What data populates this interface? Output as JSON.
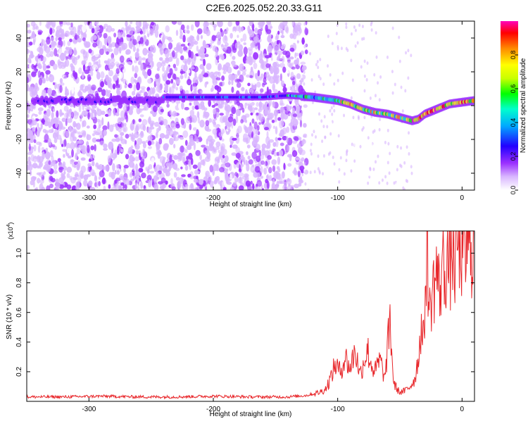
{
  "title": "C2E6.2025.052.20.33.G11",
  "chart_data": [
    {
      "type": "heatmap",
      "xlabel": "Height of straight line (km)",
      "ylabel": "Frequency (Hz)",
      "xlim": [
        -350,
        10
      ],
      "ylim": [
        -50,
        50
      ],
      "x_ticks": [
        -300,
        -200,
        -100,
        0
      ],
      "y_ticks": [
        -40,
        -20,
        0,
        20,
        40
      ],
      "colorbar": {
        "label": "Normalized spectral amplitude",
        "range": [
          0,
          1
        ],
        "ticks": [
          "0.0",
          "0.2",
          "0.4",
          "0.6",
          "0.8"
        ],
        "colors": [
          "#ffffff",
          "#d9b6ff",
          "#9b30ff",
          "#2200ff",
          "#00aaff",
          "#00ffcc",
          "#00ff00",
          "#c8ff00",
          "#ffff00",
          "#ff8800",
          "#ff0000",
          "#ff00bb"
        ]
      },
      "ridge": {
        "x": [
          -240,
          -200,
          -160,
          -140,
          -120,
          -110,
          -100,
          -90,
          -80,
          -70,
          -60,
          -50,
          -40,
          -35,
          -30,
          -20,
          -10,
          0,
          10
        ],
        "y": [
          5,
          5,
          5,
          6,
          5,
          4,
          3,
          1,
          -2,
          -4,
          -5,
          -7,
          -9,
          -8,
          -5,
          -2,
          1,
          2,
          3
        ]
      }
    },
    {
      "type": "line",
      "xlabel": "Height of straight line (km)",
      "ylabel": "SNR (10 * v/v)",
      "yscale_label": "(x10",
      "yscale_exp": "4",
      "xlim": [
        -350,
        10
      ],
      "ylim": [
        0,
        1.15
      ],
      "x_ticks": [
        -300,
        -200,
        -100,
        0
      ],
      "y_ticks": [
        0.2,
        0.4,
        0.6,
        0.8,
        1.0
      ],
      "color": "#e8262a",
      "series": [
        {
          "x": [
            -350,
            -320,
            -290,
            -260,
            -230,
            -200,
            -170,
            -140,
            -125,
            -115,
            -110,
            -106,
            -102,
            -98,
            -94,
            -90,
            -86,
            -82,
            -78,
            -76,
            -73,
            -70,
            -66,
            -62,
            -58,
            -55,
            -52,
            -50,
            -46,
            -42,
            -38,
            -35,
            -33,
            -31,
            -29,
            -28,
            -27,
            -26,
            -24,
            -22,
            -20,
            -18,
            -16,
            -14,
            -12,
            -10,
            -8,
            -6,
            -4,
            -2,
            0,
            2,
            4,
            6,
            8,
            10
          ],
          "values": [
            0.03,
            0.03,
            0.035,
            0.03,
            0.03,
            0.035,
            0.03,
            0.03,
            0.04,
            0.06,
            0.08,
            0.15,
            0.25,
            0.2,
            0.3,
            0.22,
            0.35,
            0.18,
            0.3,
            0.35,
            0.25,
            0.2,
            0.28,
            0.15,
            0.55,
            0.12,
            0.08,
            0.06,
            0.07,
            0.1,
            0.15,
            0.3,
            0.5,
            0.4,
            0.85,
            1.15,
            0.7,
            0.6,
            0.75,
            0.8,
            0.9,
            0.7,
            0.95,
            0.85,
            1.0,
            0.85,
            1.05,
            0.9,
            1.1,
            0.95,
            1.05,
            0.9,
            1.1,
            1.0,
            1.05,
            1.12
          ]
        }
      ]
    }
  ]
}
